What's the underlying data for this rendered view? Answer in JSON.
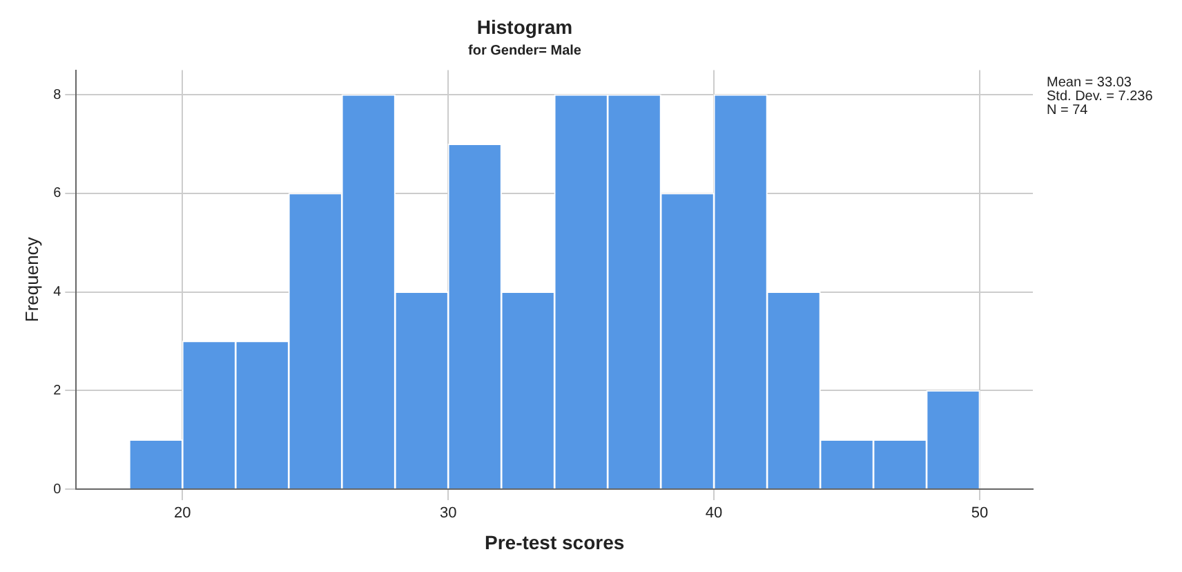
{
  "chart_data": {
    "type": "histogram",
    "title": "Histogram",
    "subtitle": "for Gender= Male",
    "xlabel": "Pre-test scores",
    "ylabel": "Frequency",
    "bins": [
      18,
      20,
      22,
      24,
      26,
      28,
      30,
      32,
      34,
      36,
      38,
      40,
      42,
      44,
      46,
      48,
      50
    ],
    "values": [
      1,
      3,
      3,
      6,
      8,
      4,
      7,
      4,
      8,
      8,
      6,
      8,
      4,
      1,
      1,
      2
    ],
    "color": "#5597e5",
    "xlim": [
      16,
      52
    ],
    "xticks": [
      20,
      30,
      40,
      50
    ],
    "ylim": [
      0,
      8.5
    ],
    "yticks": [
      0,
      2,
      4,
      6,
      8
    ],
    "grid": true,
    "annotations": [
      "Mean = 33.03",
      "Std. Dev. = 7.236",
      "N = 74"
    ]
  }
}
